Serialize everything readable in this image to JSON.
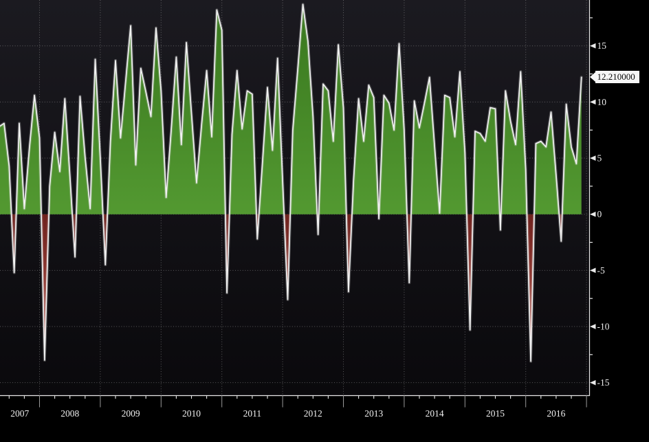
{
  "chart_data": {
    "type": "area",
    "title": "",
    "frequency": "monthly",
    "start_month": "2007-05",
    "end_month": "2016-12",
    "months": [
      "2007-05",
      "2007-06",
      "2007-07",
      "2007-08",
      "2007-09",
      "2007-10",
      "2007-11",
      "2007-12",
      "2008-01",
      "2008-02",
      "2008-03",
      "2008-04",
      "2008-05",
      "2008-06",
      "2008-07",
      "2008-08",
      "2008-09",
      "2008-10",
      "2008-11",
      "2008-12",
      "2009-01",
      "2009-02",
      "2009-03",
      "2009-04",
      "2009-05",
      "2009-06",
      "2009-07",
      "2009-08",
      "2009-09",
      "2009-10",
      "2009-11",
      "2009-12",
      "2010-01",
      "2010-02",
      "2010-03",
      "2010-04",
      "2010-05",
      "2010-06",
      "2010-07",
      "2010-08",
      "2010-09",
      "2010-10",
      "2010-11",
      "2010-12",
      "2011-01",
      "2011-02",
      "2011-03",
      "2011-04",
      "2011-05",
      "2011-06",
      "2011-07",
      "2011-08",
      "2011-09",
      "2011-10",
      "2011-11",
      "2011-12",
      "2012-01",
      "2012-02",
      "2012-03",
      "2012-04",
      "2012-05",
      "2012-06",
      "2012-07",
      "2012-08",
      "2012-09",
      "2012-10",
      "2012-11",
      "2012-12",
      "2013-01",
      "2013-02",
      "2013-03",
      "2013-04",
      "2013-05",
      "2013-06",
      "2013-07",
      "2013-08",
      "2013-09",
      "2013-10",
      "2013-11",
      "2013-12",
      "2014-01",
      "2014-02",
      "2014-03",
      "2014-04",
      "2014-05",
      "2014-06",
      "2014-07",
      "2014-08",
      "2014-09",
      "2014-10",
      "2014-11",
      "2014-12",
      "2015-01",
      "2015-02",
      "2015-03",
      "2015-04",
      "2015-05",
      "2015-06",
      "2015-07",
      "2015-08",
      "2015-09",
      "2015-10",
      "2015-11",
      "2015-12",
      "2016-01",
      "2016-02",
      "2016-03",
      "2016-04",
      "2016-05",
      "2016-06",
      "2016-07",
      "2016-08",
      "2016-09",
      "2016-10",
      "2016-11",
      "2016-12"
    ],
    "values": [
      7.8,
      8.1,
      4.3,
      -5.2,
      8.1,
      0.5,
      5.9,
      10.6,
      6.8,
      -13.0,
      2.5,
      7.3,
      3.8,
      10.3,
      3.4,
      -3.8,
      10.5,
      5.1,
      0.5,
      13.8,
      5.0,
      -4.5,
      6.5,
      13.7,
      6.8,
      11.8,
      16.8,
      4.4,
      13.0,
      10.9,
      8.7,
      16.6,
      11.0,
      1.5,
      7.5,
      14.0,
      6.2,
      15.3,
      9.0,
      2.8,
      8.0,
      12.8,
      6.9,
      18.2,
      16.4,
      -7.0,
      7.1,
      12.8,
      7.6,
      11.0,
      10.7,
      -2.2,
      4.5,
      11.3,
      5.7,
      13.9,
      3.0,
      -7.6,
      7.5,
      13.0,
      18.7,
      15.4,
      8.7,
      -1.8,
      11.6,
      11.0,
      6.5,
      15.1,
      9.5,
      -6.9,
      3.0,
      10.3,
      6.5,
      11.5,
      10.4,
      -0.4,
      10.6,
      9.9,
      7.5,
      15.2,
      7.5,
      -6.1,
      10.1,
      7.7,
      9.9,
      12.2,
      6.1,
      0.1,
      10.6,
      10.4,
      6.9,
      12.7,
      5.5,
      -10.3,
      7.4,
      7.2,
      6.5,
      9.5,
      9.4,
      -1.4,
      11.0,
      8.3,
      6.2,
      12.7,
      4.0,
      -13.1,
      6.3,
      6.5,
      6.0,
      9.1,
      3.5,
      -2.4,
      9.8,
      6.0,
      4.5,
      12.21
    ],
    "last_value": 12.21,
    "last_value_label": "12.210000",
    "y_axis": {
      "side": "right",
      "tick_labels": [
        "15",
        "10",
        "5",
        "0",
        "-5",
        "-10",
        "-15"
      ],
      "tick_values": [
        15,
        10,
        5,
        0,
        -5,
        -10,
        -15
      ],
      "minor_tick_step": 2.5,
      "range": [
        -16.1,
        19.1
      ]
    },
    "x_axis": {
      "year_labels": [
        "2007",
        "2008",
        "2009",
        "2010",
        "2011",
        "2012",
        "2013",
        "2014",
        "2015",
        "2016"
      ],
      "minor_ticks": "quarterly"
    },
    "grid": "dotted",
    "zero_baseline": true,
    "colors": {
      "positive_fill_top": "#38761e",
      "positive_fill_bottom": "#539931",
      "negative_fill_top": "#6f221e",
      "negative_fill_bottom": "#cb5d51",
      "line": "#f1f1f1",
      "line_glow": "#cfcfcf",
      "background_top": "#1b1a20",
      "background_bottom": "#0a090c",
      "outer_background": "#000000",
      "axis": "#e8e8e8",
      "grid": "#a8a8a8",
      "year_separator": "#9a9a9a",
      "tick_label": "#ededed",
      "badge_background": "#f6f6f6",
      "badge_text": "#050505"
    }
  }
}
